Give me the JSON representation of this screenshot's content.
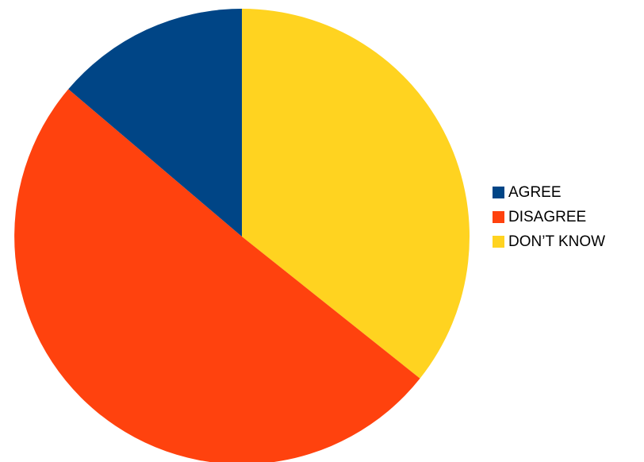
{
  "chart_data": {
    "type": "pie",
    "title": "",
    "slices": [
      {
        "label": "AGREE",
        "value": 13.8,
        "color": "#004586"
      },
      {
        "label": "DISAGREE",
        "value": 50.5,
        "color": "#ff420e"
      },
      {
        "label": "DON’T KNOW",
        "value": 35.7,
        "color": "#ffd320"
      }
    ],
    "start_angle": "12 o'clock",
    "direction": "clockwise, DON’T KNOW first",
    "legend": {
      "position": "right",
      "items": [
        {
          "label": "AGREE",
          "color": "#004586"
        },
        {
          "label": "DISAGREE",
          "color": "#ff420e"
        },
        {
          "label": "DON’T KNOW",
          "color": "#ffd320"
        }
      ]
    }
  }
}
